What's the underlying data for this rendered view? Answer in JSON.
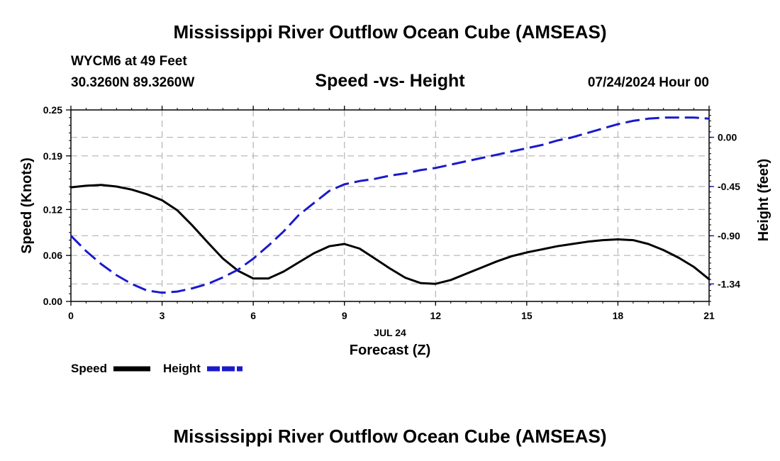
{
  "header": {
    "title": "Mississippi River Outflow Ocean Cube (AMSEAS)",
    "station": "WYCM6 at 49 Feet",
    "coords": "30.3260N  89.3260W",
    "subtitle": "Speed -vs- Height",
    "datetime": "07/24/2024 Hour 00"
  },
  "footer": {
    "title": "Mississippi River Outflow Ocean Cube (AMSEAS)"
  },
  "chart_data": {
    "type": "line",
    "title": "Speed -vs- Height",
    "xlabel": "Forecast (Z)",
    "xlabel_date": "JUL 24",
    "ylabel": "Speed (Knots)",
    "y2label": "Height (feet)",
    "xlim": [
      0,
      21
    ],
    "ylim": [
      0,
      0.25
    ],
    "y2lim": [
      -1.5,
      0.25
    ],
    "x_ticks": [
      "0",
      "3",
      "6",
      "9",
      "12",
      "15",
      "18",
      "21"
    ],
    "y_ticks": [
      "0.00",
      "0.06",
      "0.12",
      "0.19",
      "0.25"
    ],
    "y2_ticks": [
      "-1.34",
      "-0.90",
      "-0.45",
      "0.00"
    ],
    "x": [
      0,
      0.5,
      1,
      1.5,
      2,
      2.5,
      3,
      3.5,
      4,
      4.5,
      5,
      5.5,
      6,
      6.5,
      7,
      7.5,
      8,
      8.5,
      9,
      9.5,
      10,
      10.5,
      11,
      11.5,
      12,
      12.5,
      13,
      13.5,
      14,
      14.5,
      15,
      15.5,
      16,
      16.5,
      17,
      17.5,
      18,
      18.5,
      19,
      19.5,
      20,
      20.5,
      21
    ],
    "series": [
      {
        "name": "Speed",
        "axis": "left",
        "color": "#000000",
        "dash": "solid",
        "values": [
          0.149,
          0.151,
          0.152,
          0.15,
          0.146,
          0.14,
          0.132,
          0.119,
          0.099,
          0.077,
          0.056,
          0.04,
          0.03,
          0.03,
          0.039,
          0.051,
          0.063,
          0.072,
          0.075,
          0.069,
          0.056,
          0.043,
          0.031,
          0.024,
          0.023,
          0.028,
          0.036,
          0.044,
          0.052,
          0.059,
          0.064,
          0.068,
          0.072,
          0.075,
          0.078,
          0.08,
          0.081,
          0.08,
          0.075,
          0.067,
          0.057,
          0.045,
          0.029
        ]
      },
      {
        "name": "Height",
        "axis": "right",
        "color": "#1a1acc",
        "dash": "dashed",
        "values": [
          -0.9,
          -1.04,
          -1.16,
          -1.26,
          -1.34,
          -1.4,
          -1.42,
          -1.41,
          -1.38,
          -1.34,
          -1.28,
          -1.21,
          -1.11,
          -0.99,
          -0.86,
          -0.71,
          -0.6,
          -0.49,
          -0.43,
          -0.4,
          -0.38,
          -0.35,
          -0.33,
          -0.3,
          -0.28,
          -0.25,
          -0.22,
          -0.19,
          -0.16,
          -0.13,
          -0.1,
          -0.07,
          -0.03,
          0.0,
          0.04,
          0.08,
          0.12,
          0.15,
          0.17,
          0.18,
          0.18,
          0.18,
          0.17
        ]
      }
    ],
    "legend": [
      {
        "label": "Speed",
        "color": "#000000",
        "dash": "solid"
      },
      {
        "label": "Height",
        "color": "#1a1acc",
        "dash": "dashed"
      }
    ],
    "grid": true,
    "legend_position": "bottom-left"
  }
}
